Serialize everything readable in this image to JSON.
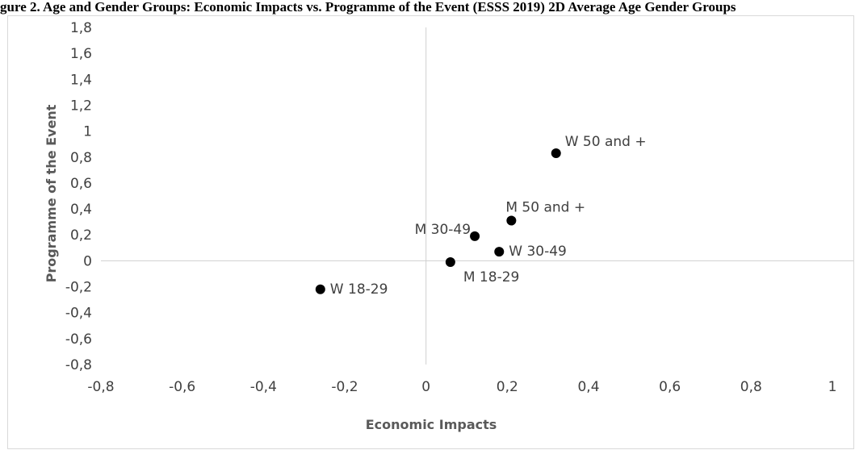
{
  "title": "gure 2. Age and Gender Groups: Economic Impacts vs. Programme of the Event (ESSS 2019) 2D Average Age Gender Groups",
  "colors": {
    "point": "#000000",
    "axis": "#d0d0d0",
    "border": "#d9d9d9",
    "text": "#404040",
    "axis_title": "#595959"
  },
  "chart_data": {
    "type": "scatter",
    "xlabel": "Economic Impacts",
    "ylabel": "Programme of the Event",
    "xlim": [
      -0.8,
      1
    ],
    "ylim": [
      -0.8,
      1.8
    ],
    "x_ticks": [
      -0.8,
      -0.6,
      -0.4,
      -0.2,
      0,
      0.2,
      0.4,
      0.6,
      0.8,
      1
    ],
    "y_ticks": [
      -0.8,
      -0.6,
      -0.4,
      -0.2,
      0,
      0.2,
      0.4,
      0.6,
      0.8,
      1,
      1.2,
      1.4,
      1.6,
      1.8
    ],
    "x_tick_labels": [
      "-0,8",
      "-0,6",
      "-0,4",
      "-0,2",
      "0",
      "0,2",
      "0,4",
      "0,6",
      "0,8",
      "1"
    ],
    "y_tick_labels": [
      "-0,8",
      "-0,6",
      "-0,4",
      "-0,2",
      "0",
      "0,2",
      "0,4",
      "0,6",
      "0,8",
      "1",
      "1,2",
      "1,4",
      "1,6",
      "1,8"
    ],
    "grid": false,
    "legend": "none",
    "points": [
      {
        "label": "W 50 and +",
        "x": 0.32,
        "y": 0.83,
        "label_pos": "top-right"
      },
      {
        "label": "M 50 and +",
        "x": 0.21,
        "y": 0.31,
        "label_pos": "top-left"
      },
      {
        "label": "M 30-49",
        "x": 0.12,
        "y": 0.19,
        "label_pos": "left"
      },
      {
        "label": "W 30-49",
        "x": 0.18,
        "y": 0.07,
        "label_pos": "right"
      },
      {
        "label": "M 18-29",
        "x": 0.06,
        "y": -0.01,
        "label_pos": "bottom-right"
      },
      {
        "label": "W 18-29",
        "x": -0.26,
        "y": -0.22,
        "label_pos": "right"
      }
    ]
  }
}
